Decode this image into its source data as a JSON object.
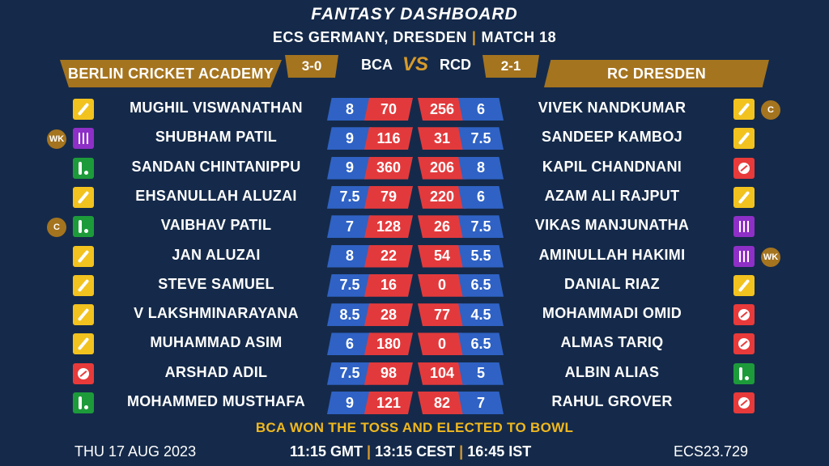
{
  "header": {
    "title": "FANTASY DASHBOARD",
    "subtitle_left": "ECS GERMANY, DRESDEN",
    "subtitle_sep": "|",
    "subtitle_right": "MATCH 18"
  },
  "teams": {
    "left": {
      "name": "BERLIN CRICKET ACADEMY",
      "abbr": "BCA",
      "record": "3-0"
    },
    "right": {
      "name": "RC DRESDEN",
      "abbr": "RCD",
      "record": "2-1"
    },
    "vs": "VS"
  },
  "colors": {
    "background": "#152a4a",
    "gold": "#a5741f",
    "credits_blue": "#2f62c4",
    "points_red": "#e23a3c",
    "batter": "#f2c21f",
    "wicketkeeper": "#8e2fc7",
    "allrounder": "#1d9b3a",
    "bowler": "#e83a3a",
    "toss_text": "#f0b81e"
  },
  "rows": [
    {
      "left": {
        "name": "MUGHIL VISWANATHAN",
        "credits": "8",
        "points": "70",
        "role": "bat",
        "badge": ""
      },
      "right": {
        "name": "VIVEK NANDKUMAR",
        "credits": "6",
        "points": "256",
        "role": "bat",
        "badge": "C"
      }
    },
    {
      "left": {
        "name": "SHUBHAM PATIL",
        "credits": "9",
        "points": "116",
        "role": "wk",
        "badge": "WK"
      },
      "right": {
        "name": "SANDEEP KAMBOJ",
        "credits": "7.5",
        "points": "31",
        "role": "bat",
        "badge": ""
      }
    },
    {
      "left": {
        "name": "SANDAN CHINTANIPPU",
        "credits": "9",
        "points": "360",
        "role": "ar",
        "badge": ""
      },
      "right": {
        "name": "KAPIL CHANDNANI",
        "credits": "8",
        "points": "206",
        "role": "bowl",
        "badge": ""
      }
    },
    {
      "left": {
        "name": "EHSANULLAH ALUZAI",
        "credits": "7.5",
        "points": "79",
        "role": "bat",
        "badge": ""
      },
      "right": {
        "name": "AZAM ALI RAJPUT",
        "credits": "6",
        "points": "220",
        "role": "bat",
        "badge": ""
      }
    },
    {
      "left": {
        "name": "VAIBHAV PATIL",
        "credits": "7",
        "points": "128",
        "role": "ar",
        "badge": "C"
      },
      "right": {
        "name": "VIKAS MANJUNATHA",
        "credits": "7.5",
        "points": "26",
        "role": "wk",
        "badge": ""
      }
    },
    {
      "left": {
        "name": "JAN ALUZAI",
        "credits": "8",
        "points": "22",
        "role": "bat",
        "badge": ""
      },
      "right": {
        "name": "AMINULLAH HAKIMI",
        "credits": "5.5",
        "points": "54",
        "role": "wk",
        "badge": "WK"
      }
    },
    {
      "left": {
        "name": "STEVE SAMUEL",
        "credits": "7.5",
        "points": "16",
        "role": "bat",
        "badge": ""
      },
      "right": {
        "name": "DANIAL RIAZ",
        "credits": "6.5",
        "points": "0",
        "role": "bat",
        "badge": ""
      }
    },
    {
      "left": {
        "name": "V LAKSHMINARAYANA",
        "credits": "8.5",
        "points": "28",
        "role": "bat",
        "badge": ""
      },
      "right": {
        "name": "MOHAMMADI OMID",
        "credits": "4.5",
        "points": "77",
        "role": "bowl",
        "badge": ""
      }
    },
    {
      "left": {
        "name": "MUHAMMAD ASIM",
        "credits": "6",
        "points": "180",
        "role": "bat",
        "badge": ""
      },
      "right": {
        "name": "ALMAS TARIQ",
        "credits": "6.5",
        "points": "0",
        "role": "bowl",
        "badge": ""
      }
    },
    {
      "left": {
        "name": "ARSHAD ADIL",
        "credits": "7.5",
        "points": "98",
        "role": "bowl",
        "badge": ""
      },
      "right": {
        "name": "ALBIN ALIAS",
        "credits": "5",
        "points": "104",
        "role": "ar",
        "badge": ""
      }
    },
    {
      "left": {
        "name": "MOHAMMED MUSTHAFA",
        "credits": "9",
        "points": "121",
        "role": "ar",
        "badge": ""
      },
      "right": {
        "name": "RAHUL GROVER",
        "credits": "7",
        "points": "82",
        "role": "bowl",
        "badge": ""
      }
    }
  ],
  "toss": "BCA WON THE TOSS AND ELECTED TO BOWL",
  "footer": {
    "date": "THU 17 AUG 2023",
    "time_gmt": "11:15 GMT",
    "time_cest": "13:15 CEST",
    "time_ist": "16:45 IST",
    "sep": "|",
    "code": "ECS23.729"
  }
}
